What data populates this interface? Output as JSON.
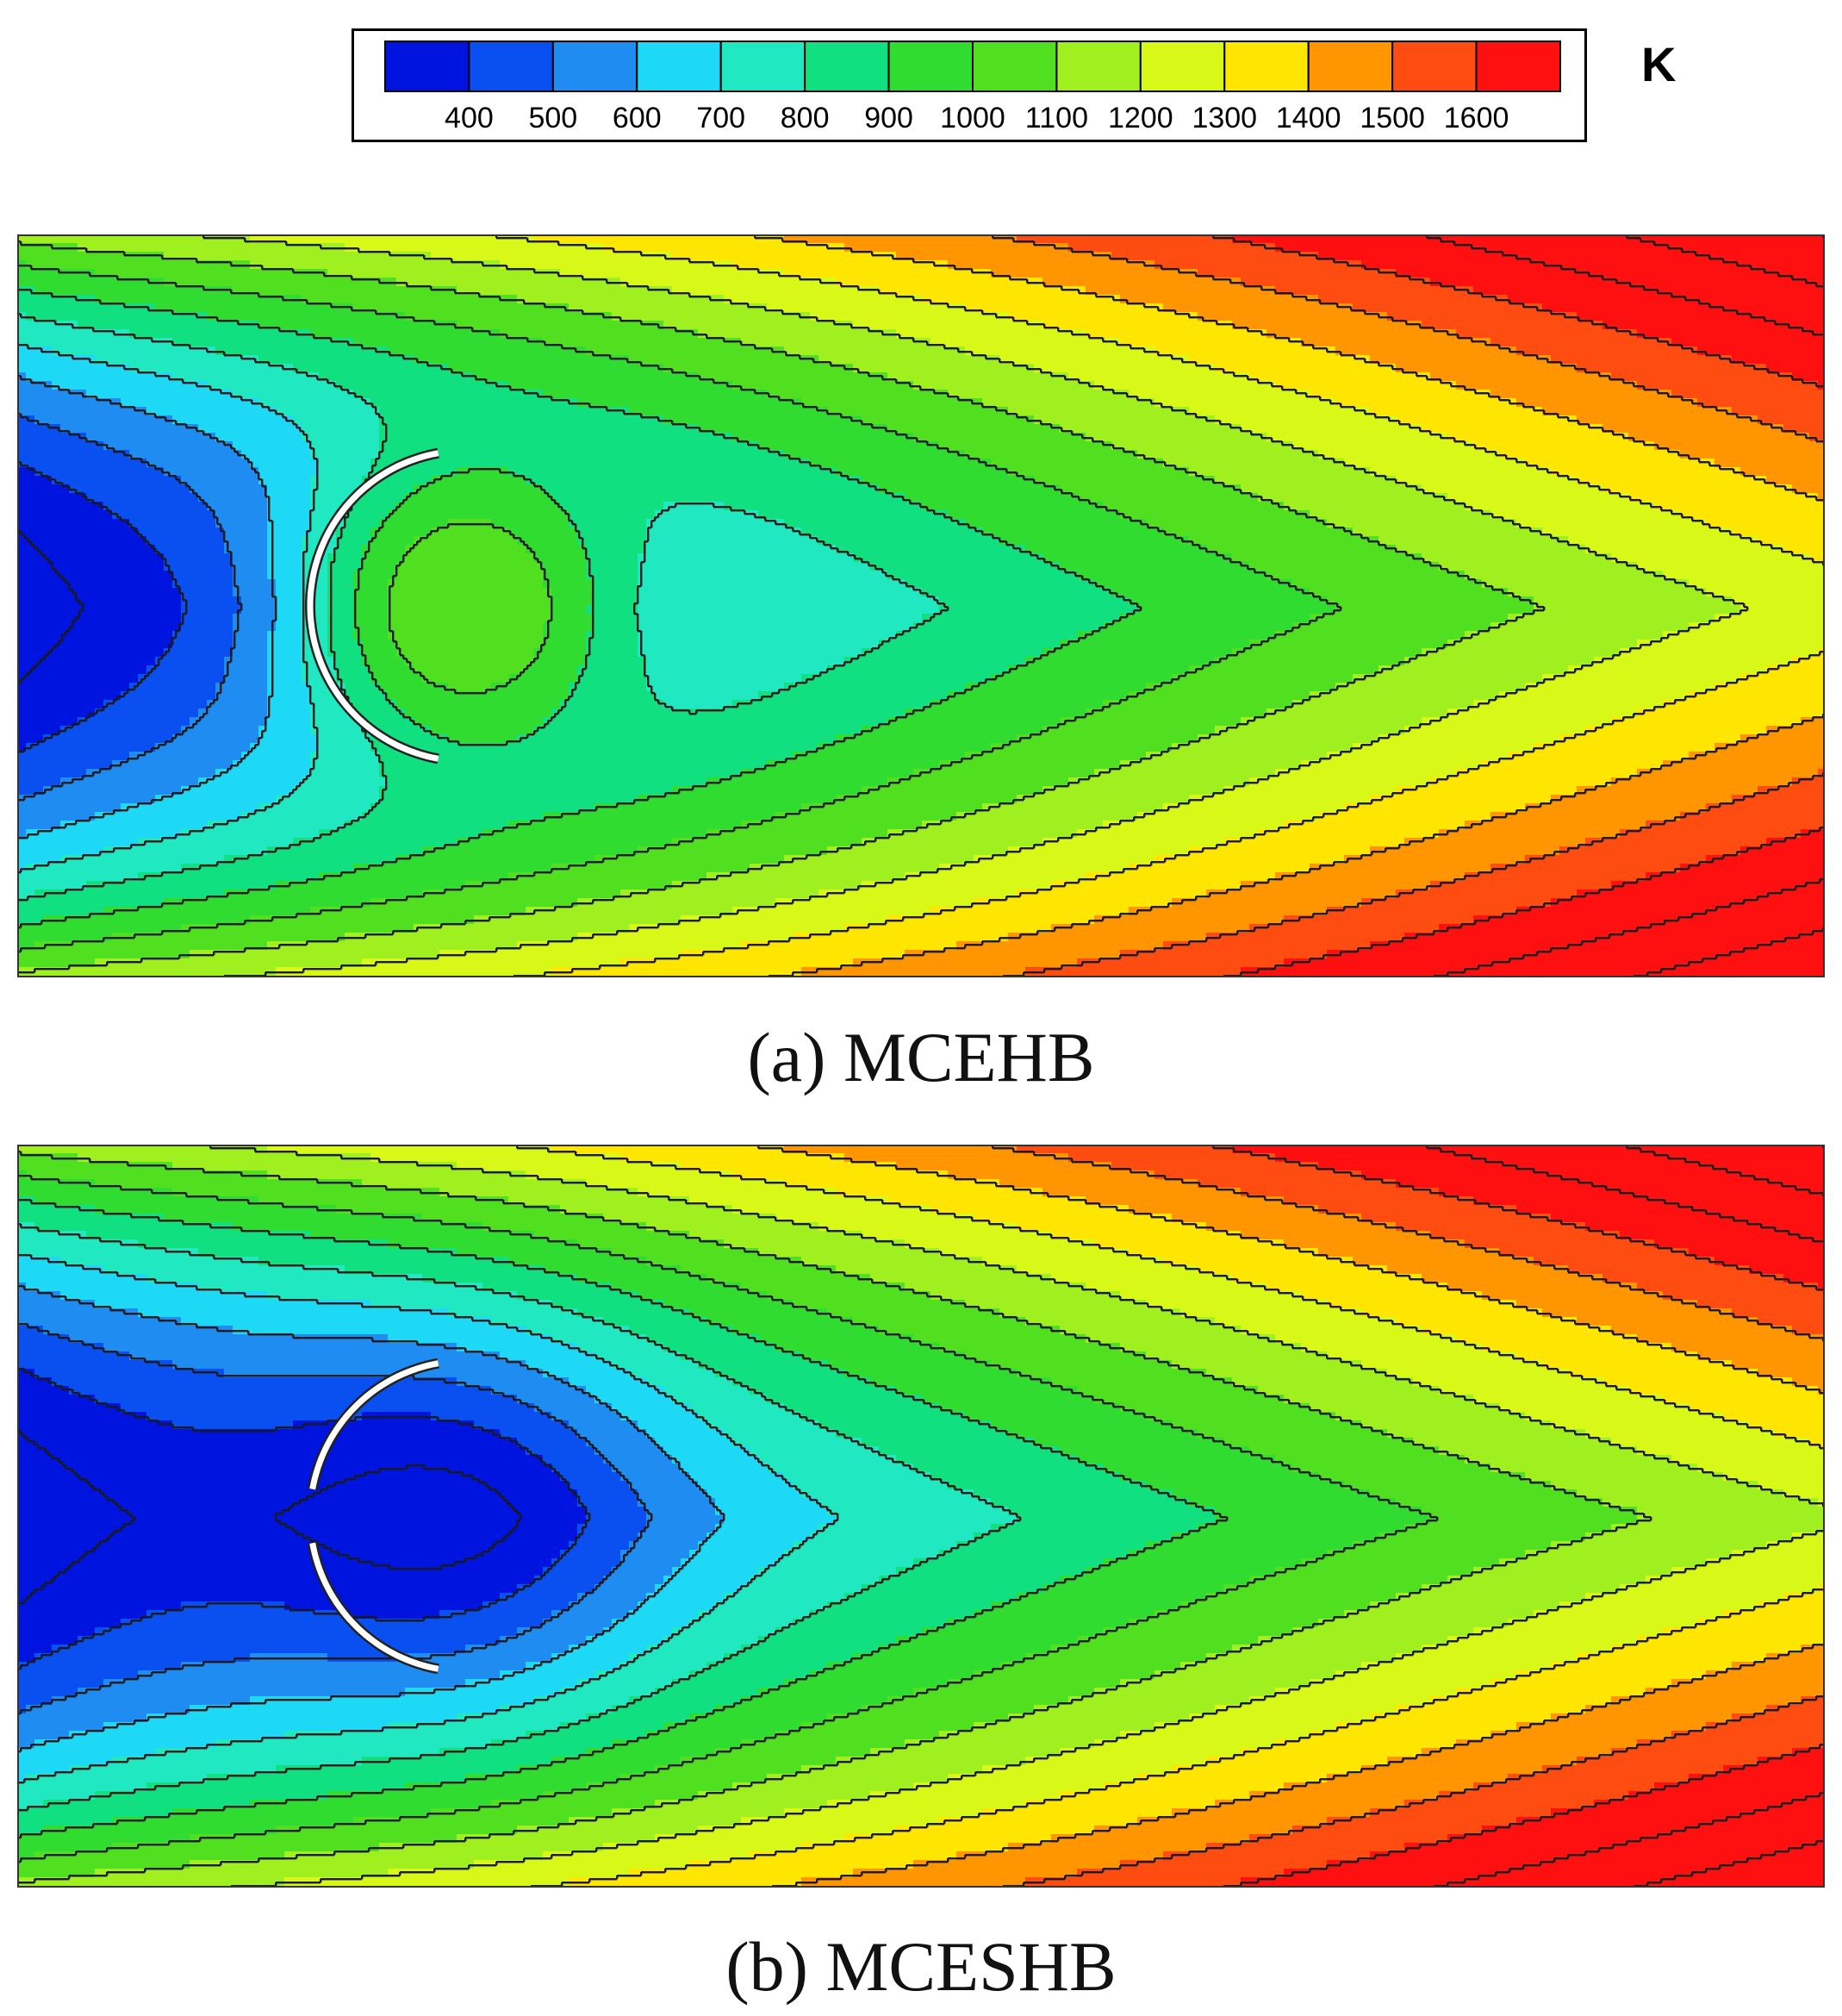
{
  "legend": {
    "unit": "K",
    "ticks": [
      "400",
      "500",
      "600",
      "700",
      "800",
      "900",
      "1000",
      "1100",
      "1200",
      "1300",
      "1400",
      "1500",
      "1600"
    ],
    "colors": [
      "#0014e0",
      "#0a4ff0",
      "#1e8cf0",
      "#1ed9f5",
      "#20e8c0",
      "#10e080",
      "#30dc30",
      "#50e020",
      "#a0f020",
      "#d8f818",
      "#ffe600",
      "#ff9600",
      "#ff4c10",
      "#ff1010"
    ]
  },
  "chart_data": [
    {
      "type": "heatmap",
      "title": "(a)  MCEHB",
      "quantity_unit": "K",
      "value_range": [
        350,
        1650
      ],
      "contour_interval": 100,
      "contour_levels": [
        400,
        500,
        600,
        700,
        800,
        900,
        1000,
        1100,
        1200,
        1300,
        1400,
        1500,
        1600
      ]
    },
    {
      "type": "heatmap",
      "title": "(b) MCESHB",
      "quantity_unit": "K",
      "value_range": [
        350,
        1650
      ],
      "contour_interval": 100,
      "contour_levels": [
        400,
        500,
        600,
        700,
        800,
        900,
        1000,
        1100,
        1200,
        1300,
        1400,
        1500,
        1600
      ]
    }
  ]
}
